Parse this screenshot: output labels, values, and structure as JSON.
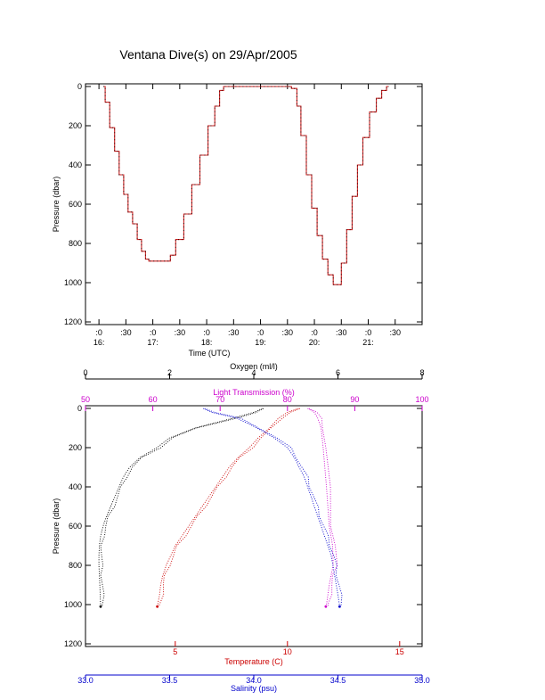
{
  "title": "Ventana Dive(s) on 29/Apr/2005",
  "colors": {
    "axis": "#000000",
    "oxygen": "#000000",
    "light": "#cc00cc",
    "temperature": "#cc0000",
    "salinity": "#0000cc",
    "trace_red": "#cc2222",
    "trace_black": "#000000"
  },
  "chart_data": [
    {
      "type": "line",
      "title": "Ventana Dive(s) on 29/Apr/2005",
      "xlabel": "Time (UTC)",
      "ylabel": "Pressure (dbar)",
      "xlim": [
        15.75,
        22.0
      ],
      "ylim": [
        1200,
        0
      ],
      "xticks": [
        {
          "x": 16.0,
          "top": ":0",
          "bottom": "16:"
        },
        {
          "x": 16.5,
          "top": ":30",
          "bottom": ""
        },
        {
          "x": 17.0,
          "top": ":0",
          "bottom": "17:"
        },
        {
          "x": 17.5,
          "top": ":30",
          "bottom": ""
        },
        {
          "x": 18.0,
          "top": ":0",
          "bottom": "18:"
        },
        {
          "x": 18.5,
          "top": ":30",
          "bottom": ""
        },
        {
          "x": 19.0,
          "top": ":0",
          "bottom": "19:"
        },
        {
          "x": 19.5,
          "top": ":30",
          "bottom": ""
        },
        {
          "x": 20.0,
          "top": ":0",
          "bottom": "20:"
        },
        {
          "x": 20.5,
          "top": ":30",
          "bottom": ""
        },
        {
          "x": 21.0,
          "top": ":0",
          "bottom": "21:"
        },
        {
          "x": 21.5,
          "top": ":30",
          "bottom": ""
        }
      ],
      "yticks": [
        0,
        200,
        400,
        600,
        800,
        1000,
        1200
      ],
      "series": [
        {
          "x": [
            16.08,
            16.15,
            16.25,
            16.33,
            16.42,
            16.5,
            16.58,
            16.67,
            16.75,
            16.83,
            16.9,
            16.95,
            17.1,
            17.3,
            17.35,
            17.5,
            17.65,
            17.8,
            17.95,
            18.1,
            18.2,
            18.28,
            18.35,
            19.0,
            19.5,
            19.65,
            19.7,
            19.8,
            19.9,
            20.0,
            20.1,
            20.2,
            20.3,
            20.4,
            20.45,
            20.55,
            20.65,
            20.75,
            20.85,
            20.95,
            21.1,
            21.2,
            21.3,
            21.38
          ],
          "y": [
            0,
            80,
            210,
            330,
            450,
            550,
            640,
            700,
            780,
            840,
            880,
            890,
            890,
            890,
            860,
            780,
            650,
            500,
            350,
            200,
            100,
            20,
            0,
            0,
            0,
            10,
            100,
            250,
            450,
            620,
            760,
            880,
            960,
            1010,
            1010,
            900,
            730,
            560,
            400,
            260,
            130,
            60,
            20,
            0
          ]
        }
      ]
    },
    {
      "type": "scatter",
      "ylabel": "Pressure (dbar)",
      "ylim": [
        1200,
        0
      ],
      "yticks": [
        0,
        200,
        400,
        600,
        800,
        1000,
        1200
      ],
      "axes": {
        "oxygen": {
          "label": "Oxygen (ml/l)",
          "lim": [
            0,
            8
          ],
          "ticks": [
            0,
            2,
            4,
            6,
            8
          ]
        },
        "light": {
          "label": "Light Transmission (%)",
          "lim": [
            50,
            100
          ],
          "ticks": [
            50,
            60,
            70,
            80,
            90,
            100
          ]
        },
        "temperature": {
          "label": "Temperature (C)",
          "lim": [
            1.0,
            16.0
          ],
          "ticks": [
            5,
            10,
            15
          ]
        },
        "salinity": {
          "label": "Salinity (psu)",
          "lim": [
            33.0,
            35.0
          ],
          "ticks": [
            "33.0",
            "33.5",
            "34.0",
            "34.5",
            "35.0"
          ]
        }
      },
      "series": [
        {
          "axis": "oxygen",
          "y": [
            0,
            20,
            50,
            100,
            150,
            200,
            250,
            300,
            350,
            400,
            450,
            500,
            550,
            600,
            650,
            700,
            750,
            800,
            850,
            900,
            950,
            1010
          ],
          "x": [
            4.2,
            4.0,
            3.5,
            2.6,
            2.0,
            1.7,
            1.3,
            1.05,
            0.9,
            0.8,
            0.7,
            0.6,
            0.5,
            0.42,
            0.36,
            0.33,
            0.32,
            0.32,
            0.33,
            0.34,
            0.35,
            0.36
          ]
        },
        {
          "axis": "light",
          "y": [
            0,
            20,
            50,
            100,
            200,
            400,
            600,
            700,
            800,
            850,
            900,
            950,
            1000,
            1010
          ],
          "x": [
            83,
            84,
            84.5,
            85,
            85.3,
            85.8,
            86.2,
            86.7,
            86.8,
            86.5,
            86.2,
            86.0,
            85.8,
            85.7
          ]
        },
        {
          "axis": "temperature",
          "y": [
            0,
            20,
            50,
            100,
            150,
            200,
            250,
            300,
            350,
            400,
            450,
            500,
            550,
            600,
            650,
            700,
            750,
            800,
            850,
            900,
            950,
            1010
          ],
          "x": [
            10.5,
            10.0,
            9.6,
            9.2,
            8.7,
            8.3,
            7.8,
            7.4,
            7.1,
            6.8,
            6.5,
            6.2,
            5.9,
            5.6,
            5.3,
            5.0,
            4.8,
            4.6,
            4.45,
            4.35,
            4.3,
            4.2
          ]
        },
        {
          "axis": "salinity",
          "y": [
            0,
            20,
            50,
            100,
            150,
            200,
            250,
            300,
            350,
            400,
            450,
            500,
            550,
            600,
            650,
            700,
            750,
            800,
            850,
            900,
            950,
            1010
          ],
          "x": [
            33.7,
            33.75,
            33.9,
            34.02,
            34.12,
            34.2,
            34.24,
            34.27,
            34.3,
            34.32,
            34.34,
            34.36,
            34.38,
            34.4,
            34.42,
            34.44,
            34.46,
            34.47,
            34.48,
            34.49,
            34.5,
            34.51
          ]
        }
      ]
    }
  ]
}
